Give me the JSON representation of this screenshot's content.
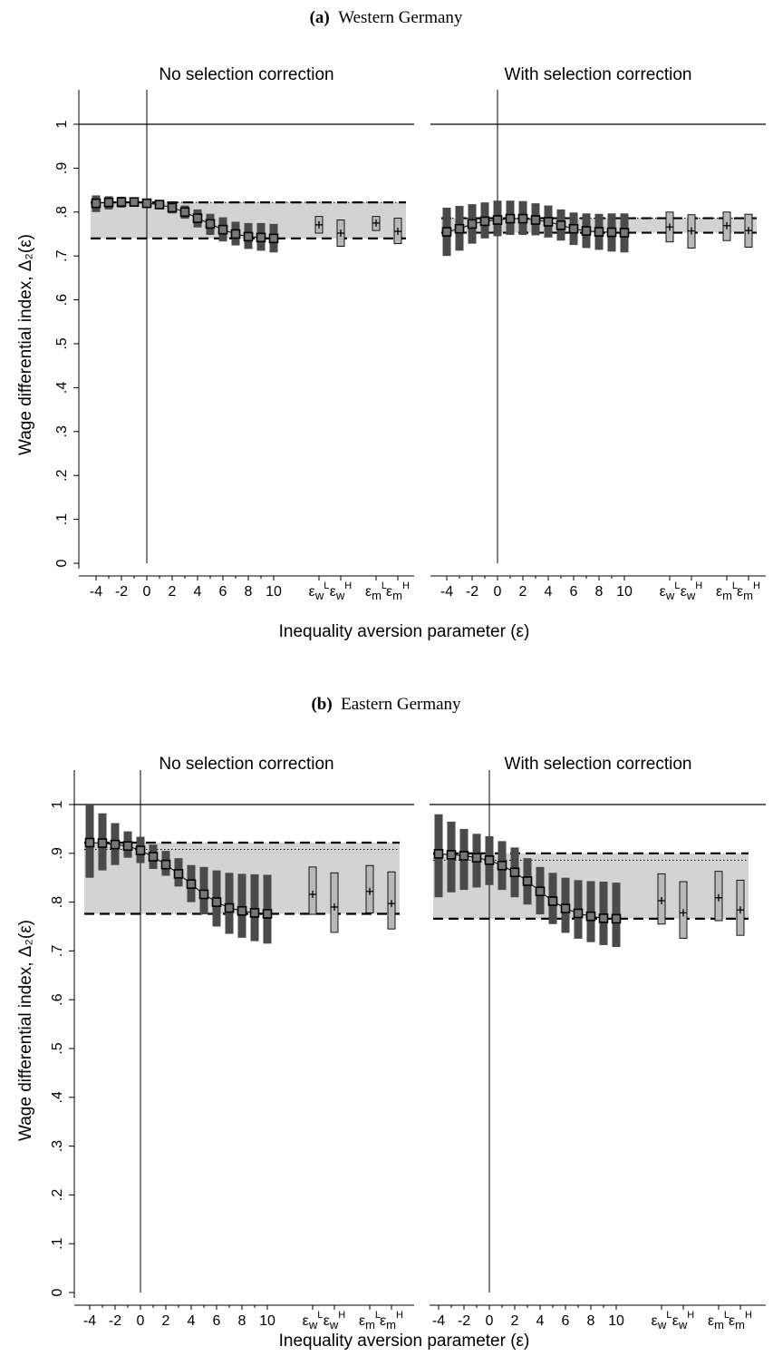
{
  "figure": {
    "panels": [
      {
        "letter": "(a)",
        "title": "Western Germany"
      },
      {
        "letter": "(b)",
        "title": "Eastern Germany"
      }
    ],
    "subplot_titles": [
      "No selection correction",
      "With selection correction"
    ],
    "ylabel": "Wage differential index, Δ₂(ε)",
    "xlabel": "Inequality aversion parameter (ε)",
    "colors": {
      "ci_dark": "#4a4a4a",
      "ci_light": "#b8b8b8",
      "band": "#d3d3d3",
      "axis": "#000000"
    }
  },
  "chart_data": [
    {
      "type": "scatter",
      "panel": "(a) Western Germany",
      "subplot": "No selection correction",
      "x_ticks": [
        "-4",
        "-2",
        "0",
        "2",
        "4",
        "6",
        "8",
        "10",
        "ε_w^L",
        "ε_w^H",
        "ε_m^L",
        "ε_m^H"
      ],
      "y_ticks": [
        "0",
        ".1",
        ".2",
        ".3",
        ".4",
        ".5",
        ".6",
        ".7",
        ".8",
        ".9",
        "1"
      ],
      "ylim": [
        0,
        1.0
      ],
      "reference_line_y": 1,
      "reference_line_x": 0,
      "band": [
        0.74,
        0.822
      ],
      "band_dotted_upper": 0.822,
      "epsilon": [
        -4,
        -3,
        -2,
        -1,
        0,
        1,
        2,
        3,
        4,
        5,
        6,
        7,
        8,
        9,
        10
      ],
      "estimate": [
        0.82,
        0.822,
        0.823,
        0.823,
        0.82,
        0.817,
        0.81,
        0.8,
        0.786,
        0.773,
        0.76,
        0.75,
        0.744,
        0.742,
        0.74
      ],
      "ci_low": [
        0.8,
        0.806,
        0.81,
        0.815,
        0.81,
        0.81,
        0.797,
        0.785,
        0.765,
        0.748,
        0.733,
        0.724,
        0.716,
        0.712,
        0.708
      ],
      "ci_high": [
        0.838,
        0.836,
        0.835,
        0.831,
        0.829,
        0.824,
        0.822,
        0.815,
        0.806,
        0.796,
        0.788,
        0.778,
        0.775,
        0.775,
        0.773
      ],
      "bounds": [
        {
          "label": "ε_w^L",
          "estimate": 0.771,
          "ci": [
            0.752,
            0.79
          ]
        },
        {
          "label": "ε_w^H",
          "estimate": 0.752,
          "ci": [
            0.722,
            0.782
          ]
        },
        {
          "label": "ε_m^L",
          "estimate": 0.775,
          "ci": [
            0.758,
            0.79
          ]
        },
        {
          "label": "ε_m^H",
          "estimate": 0.756,
          "ci": [
            0.728,
            0.786
          ]
        }
      ]
    },
    {
      "type": "scatter",
      "panel": "(a) Western Germany",
      "subplot": "With selection correction",
      "x_ticks": [
        "-4",
        "-2",
        "0",
        "2",
        "4",
        "6",
        "8",
        "10",
        "ε_w^L",
        "ε_w^H",
        "ε_m^L",
        "ε_m^H"
      ],
      "y_ticks": [
        "0",
        ".1",
        ".2",
        ".3",
        ".4",
        ".5",
        ".6",
        ".7",
        ".8",
        ".9",
        "1"
      ],
      "ylim": [
        0,
        1.0
      ],
      "reference_line_y": 1,
      "reference_line_x": 0,
      "band": [
        0.753,
        0.786
      ],
      "band_dotted_upper": 0.786,
      "epsilon": [
        -4,
        -3,
        -2,
        -1,
        0,
        1,
        2,
        3,
        4,
        5,
        6,
        7,
        8,
        9,
        10
      ],
      "estimate": [
        0.755,
        0.762,
        0.773,
        0.779,
        0.782,
        0.785,
        0.785,
        0.782,
        0.778,
        0.77,
        0.762,
        0.757,
        0.755,
        0.754,
        0.753
      ],
      "ci_low": [
        0.7,
        0.712,
        0.728,
        0.74,
        0.745,
        0.748,
        0.748,
        0.747,
        0.742,
        0.735,
        0.725,
        0.718,
        0.714,
        0.71,
        0.708
      ],
      "ci_high": [
        0.81,
        0.814,
        0.818,
        0.822,
        0.826,
        0.826,
        0.825,
        0.82,
        0.815,
        0.806,
        0.799,
        0.797,
        0.796,
        0.797,
        0.797
      ],
      "bounds": [
        {
          "label": "ε_w^L",
          "estimate": 0.766,
          "ci": [
            0.732,
            0.8
          ]
        },
        {
          "label": "ε_w^H",
          "estimate": 0.757,
          "ci": [
            0.718,
            0.794
          ]
        },
        {
          "label": "ε_m^L",
          "estimate": 0.769,
          "ci": [
            0.735,
            0.8
          ]
        },
        {
          "label": "ε_m^H",
          "estimate": 0.758,
          "ci": [
            0.72,
            0.795
          ]
        }
      ]
    },
    {
      "type": "scatter",
      "panel": "(b) Eastern Germany",
      "subplot": "No selection correction",
      "x_ticks": [
        "-4",
        "-2",
        "0",
        "2",
        "4",
        "6",
        "8",
        "10",
        "ε_w^L",
        "ε_w^H",
        "ε_m^L",
        "ε_m^H"
      ],
      "y_ticks": [
        "0",
        ".1",
        ".2",
        ".3",
        ".4",
        ".5",
        ".6",
        ".7",
        ".8",
        ".9",
        "1"
      ],
      "ylim": [
        0,
        1.0
      ],
      "reference_line_y": 1,
      "reference_line_x": 0,
      "band": [
        0.776,
        0.922
      ],
      "band_dotted_upper": 0.908,
      "epsilon": [
        -4,
        -3,
        -2,
        -1,
        0,
        1,
        2,
        3,
        4,
        5,
        6,
        7,
        8,
        9,
        10
      ],
      "estimate": [
        0.922,
        0.921,
        0.918,
        0.915,
        0.906,
        0.893,
        0.877,
        0.858,
        0.837,
        0.816,
        0.8,
        0.788,
        0.782,
        0.778,
        0.776
      ],
      "ci_low": [
        0.85,
        0.865,
        0.876,
        0.891,
        0.88,
        0.868,
        0.854,
        0.832,
        0.8,
        0.775,
        0.75,
        0.735,
        0.727,
        0.72,
        0.715
      ],
      "ci_high": [
        1.0,
        0.982,
        0.962,
        0.945,
        0.934,
        0.918,
        0.905,
        0.89,
        0.876,
        0.872,
        0.865,
        0.86,
        0.858,
        0.857,
        0.856
      ],
      "bounds": [
        {
          "label": "ε_w^L",
          "estimate": 0.816,
          "ci": [
            0.775,
            0.872
          ]
        },
        {
          "label": "ε_w^H",
          "estimate": 0.79,
          "ci": [
            0.738,
            0.86
          ]
        },
        {
          "label": "ε_m^L",
          "estimate": 0.822,
          "ci": [
            0.778,
            0.875
          ]
        },
        {
          "label": "ε_m^H",
          "estimate": 0.797,
          "ci": [
            0.745,
            0.862
          ]
        }
      ]
    },
    {
      "type": "scatter",
      "panel": "(b) Eastern Germany",
      "subplot": "With selection correction",
      "x_ticks": [
        "-4",
        "-2",
        "0",
        "2",
        "4",
        "6",
        "8",
        "10",
        "ε_w^L",
        "ε_w^H",
        "ε_m^L",
        "ε_m^H"
      ],
      "y_ticks": [
        "0",
        ".1",
        ".2",
        ".3",
        ".4",
        ".5",
        ".6",
        ".7",
        ".8",
        ".9",
        "1"
      ],
      "ylim": [
        0,
        1.0
      ],
      "reference_line_y": 1,
      "reference_line_x": 0,
      "band": [
        0.766,
        0.9
      ],
      "band_dotted_upper": 0.886,
      "epsilon": [
        -4,
        -3,
        -2,
        -1,
        0,
        1,
        2,
        3,
        4,
        5,
        6,
        7,
        8,
        9,
        10
      ],
      "estimate": [
        0.899,
        0.897,
        0.895,
        0.891,
        0.886,
        0.875,
        0.861,
        0.843,
        0.822,
        0.802,
        0.787,
        0.777,
        0.771,
        0.767,
        0.766
      ],
      "ci_low": [
        0.81,
        0.82,
        0.825,
        0.83,
        0.835,
        0.825,
        0.81,
        0.795,
        0.775,
        0.755,
        0.737,
        0.725,
        0.718,
        0.712,
        0.708
      ],
      "ci_high": [
        0.98,
        0.965,
        0.95,
        0.94,
        0.935,
        0.925,
        0.912,
        0.89,
        0.872,
        0.86,
        0.85,
        0.845,
        0.843,
        0.842,
        0.84
      ],
      "bounds": [
        {
          "label": "ε_w^L",
          "estimate": 0.803,
          "ci": [
            0.755,
            0.858
          ]
        },
        {
          "label": "ε_w^H",
          "estimate": 0.778,
          "ci": [
            0.726,
            0.842
          ]
        },
        {
          "label": "ε_m^L",
          "estimate": 0.809,
          "ci": [
            0.762,
            0.863
          ]
        },
        {
          "label": "ε_m^H",
          "estimate": 0.784,
          "ci": [
            0.732,
            0.845
          ]
        }
      ]
    }
  ]
}
